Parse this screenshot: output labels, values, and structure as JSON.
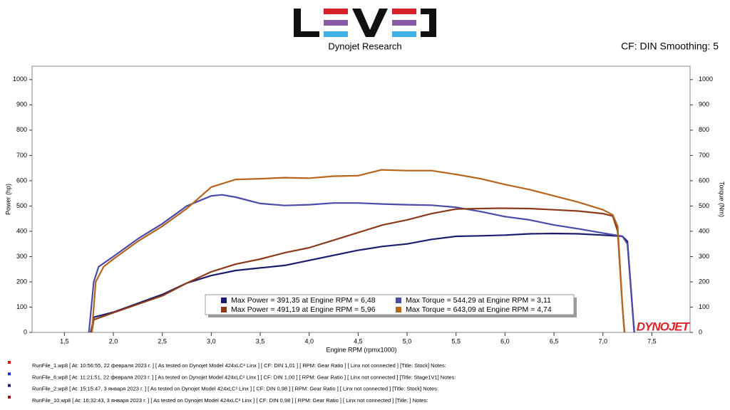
{
  "chart_data": {
    "type": "line",
    "brand": "Dynojet Research",
    "settings_text": "CF: DIN Smoothing: 5",
    "watermark": "DYNOJET",
    "x_label": "Engine RPM (rpmx1000)",
    "y_label": "Power (hp)",
    "y2_label": "Torque (Nm)",
    "xlim": [
      1.17,
      7.89
    ],
    "ylim": [
      0,
      1053
    ],
    "y2lim": [
      0,
      1053
    ],
    "xticks": [
      {
        "value": 1.5,
        "label": "1,5"
      },
      {
        "value": 2.0,
        "label": "2,0"
      },
      {
        "value": 2.5,
        "label": "2,5"
      },
      {
        "value": 3.0,
        "label": "3,0"
      },
      {
        "value": 3.5,
        "label": "3,5"
      },
      {
        "value": 4.0,
        "label": "4,0"
      },
      {
        "value": 4.5,
        "label": "4,5"
      },
      {
        "value": 5.0,
        "label": "5,0"
      },
      {
        "value": 5.5,
        "label": "5,5"
      },
      {
        "value": 6.0,
        "label": "6,0"
      },
      {
        "value": 6.5,
        "label": "6,5"
      },
      {
        "value": 7.0,
        "label": "7,0"
      },
      {
        "value": 7.5,
        "label": "7,5"
      }
    ],
    "yticks": [
      0,
      100,
      200,
      300,
      400,
      500,
      600,
      700,
      800,
      900,
      1000
    ],
    "y2ticks": [
      0,
      100,
      200,
      300,
      400,
      500,
      600,
      700,
      800,
      900,
      1000
    ],
    "grid": false,
    "series": [
      {
        "name": "Max Power = 391,35 at Engine RPM = 6,48",
        "color": "#1c1c6e",
        "axis": "y",
        "x": [
          1.77,
          1.8,
          2.0,
          2.5,
          2.75,
          3.0,
          3.25,
          3.5,
          3.75,
          4.0,
          4.25,
          4.5,
          4.75,
          5.0,
          5.25,
          5.5,
          5.75,
          6.0,
          6.25,
          6.48,
          6.75,
          7.0,
          7.2,
          7.25,
          7.3,
          7.32
        ],
        "values": [
          0,
          60,
          80,
          150,
          195,
          225,
          245,
          255,
          265,
          285,
          305,
          325,
          340,
          350,
          368,
          380,
          382,
          385,
          390,
          391.35,
          390,
          385,
          380,
          360,
          100,
          0
        ]
      },
      {
        "name": "Max Torque = 544,29 at Engine RPM = 3,11",
        "color": "#4a4aa8",
        "axis": "y2",
        "x": [
          1.75,
          1.8,
          1.85,
          2.0,
          2.25,
          2.5,
          2.75,
          3.0,
          3.11,
          3.25,
          3.5,
          3.75,
          4.0,
          4.25,
          4.5,
          4.75,
          5.0,
          5.25,
          5.5,
          5.75,
          6.0,
          6.25,
          6.5,
          6.75,
          7.0,
          7.2,
          7.25,
          7.3,
          7.32
        ],
        "values": [
          0,
          200,
          260,
          300,
          370,
          430,
          500,
          540,
          544.29,
          535,
          510,
          502,
          505,
          512,
          512,
          508,
          505,
          503,
          495,
          478,
          458,
          445,
          425,
          410,
          393,
          380,
          350,
          100,
          0
        ]
      },
      {
        "name": "Max Power = 491,19 at Engine RPM = 5,96",
        "color": "#8b3a1a",
        "axis": "y",
        "x": [
          1.78,
          1.8,
          2.0,
          2.5,
          2.75,
          3.0,
          3.25,
          3.5,
          3.75,
          4.0,
          4.25,
          4.5,
          4.75,
          5.0,
          5.25,
          5.5,
          5.75,
          5.96,
          6.25,
          6.5,
          6.75,
          7.0,
          7.1,
          7.15,
          7.2,
          7.22
        ],
        "values": [
          0,
          50,
          78,
          145,
          195,
          240,
          270,
          290,
          315,
          335,
          365,
          395,
          425,
          445,
          470,
          488,
          490,
          491.19,
          490,
          485,
          480,
          470,
          460,
          400,
          100,
          0
        ]
      },
      {
        "name": "Max Torque = 643,09 at Engine RPM = 4,74",
        "color": "#b5651d",
        "axis": "y2",
        "x": [
          1.78,
          1.82,
          1.9,
          2.0,
          2.25,
          2.5,
          2.75,
          3.0,
          3.25,
          3.5,
          3.75,
          4.0,
          4.25,
          4.5,
          4.74,
          5.0,
          5.25,
          5.5,
          5.75,
          6.0,
          6.25,
          6.5,
          6.75,
          7.0,
          7.1,
          7.15,
          7.2,
          7.22
        ],
        "values": [
          0,
          200,
          260,
          290,
          360,
          420,
          490,
          575,
          605,
          608,
          612,
          610,
          618,
          620,
          643.09,
          640,
          640,
          625,
          608,
          585,
          565,
          540,
          515,
          485,
          465,
          420,
          100,
          0
        ]
      }
    ],
    "runs": [
      {
        "text": "RunFile_1.wp8  [ At: 10:56:55, 22 февраля 2023 г. ]  [ As tested on Dynojet Model 424xLC² Linx ]  [ CF: DIN 1,01 ]  [ RPM: Gear Ratio ]  [ Linx not connected ]  [Title: Stock]   Notes:",
        "color": "#e01010"
      },
      {
        "text": "RunFile_6.wp8  [ At: 11:21:51, 22 февраля 2023 г. ]  [ As tested on Dynojet Model 424xLC² Linx ]  [ CF: DIN 1,00 ]  [ RPM: Gear Ratio ]  [ Linx not connected ]  [Title: Stage1V1]   Notes:",
        "color": "#1a30d0"
      },
      {
        "text": "RunFile_2.wp8  [ At: 15:15:47, 3 января 2023 г. ]  [ As tested on Dynojet Model 424xLC² Linx ]  [ CF: DIN 0,98 ]  [ RPM: Gear Ratio ]  [ Linx not connected ]  [Title: Stock]   Notes:",
        "color": "#1c1c6e"
      },
      {
        "text": "RunFile_10.wp8  [ At: 16:32:43, 3 января 2023 г. ]  [ As tested on Dynojet Model 424xLC² Linx ]  [ CF: DIN 0,98 ]  [ RPM: Gear Ratio ]  [ Linx not connected ]  [Title: ]   Notes:",
        "color": "#8b1a1a"
      }
    ]
  }
}
